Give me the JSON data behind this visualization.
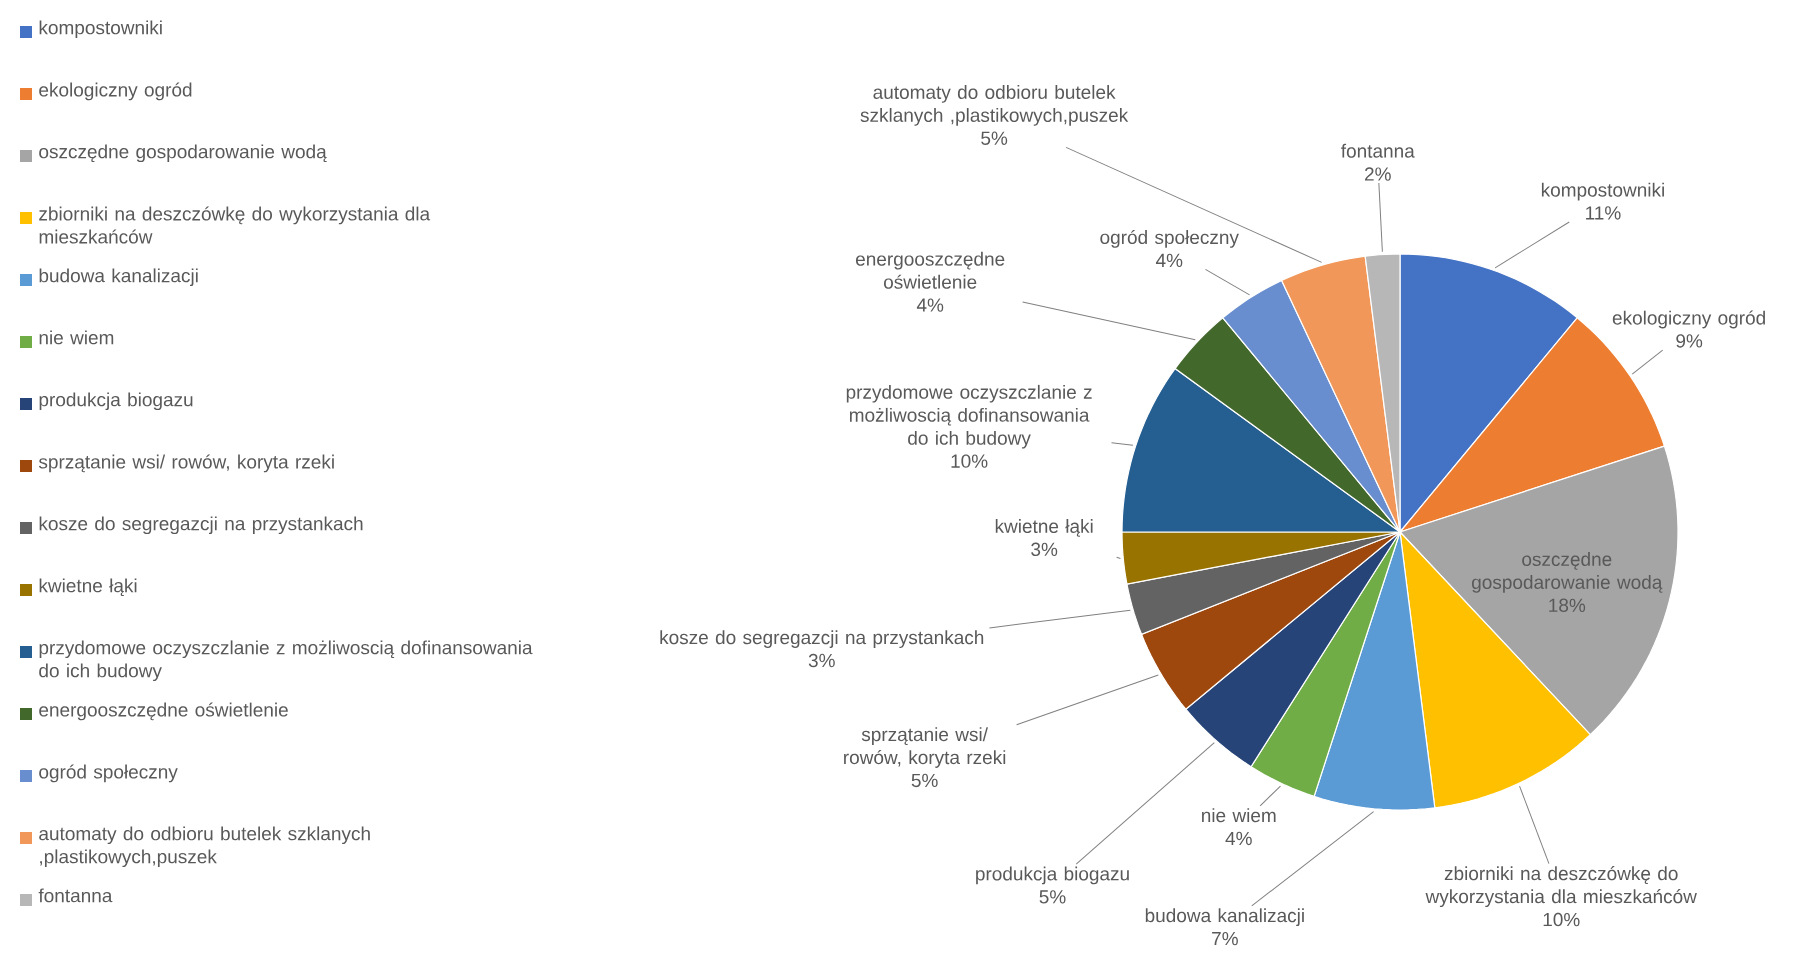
{
  "chart_data": {
    "type": "pie",
    "legend": "left",
    "categories": [
      "kompostowniki",
      "ekologiczny ogród",
      "oszczędne gospodarowanie wodą",
      "zbiorniki na deszczówkę do wykorzystania dla mieszkańców",
      "budowa kanalizacji",
      "nie wiem",
      "produkcja biogazu",
      "sprzątanie wsi/ rowów, koryta rzeki",
      "kosze do segregazcji na przystankach",
      "kwietne łąki",
      "przydomowe oczyszczlanie z możliwoscią dofinansowania do ich budowy",
      "energooszczędne oświetlenie",
      "ogród społeczny",
      "automaty do odbioru butelek szklanych ,plastikowych,puszek",
      "fontanna"
    ],
    "values": [
      11,
      9,
      18,
      10,
      7,
      4,
      5,
      5,
      3,
      3,
      10,
      4,
      4,
      5,
      2
    ],
    "value_labels": [
      "11%",
      "9%",
      "18%",
      "10%",
      "7%",
      "4%",
      "5%",
      "5%",
      "3%",
      "3%",
      "10%",
      "4%",
      "4%",
      "5%",
      "2%"
    ],
    "colors": [
      "#4472c4",
      "#ed7d31",
      "#a5a5a5",
      "#ffc000",
      "#5b9bd5",
      "#70ad47",
      "#264478",
      "#9e480e",
      "#636363",
      "#997300",
      "#255e91",
      "#43682b",
      "#698ed0",
      "#f1975a",
      "#b7b7b7"
    ]
  }
}
